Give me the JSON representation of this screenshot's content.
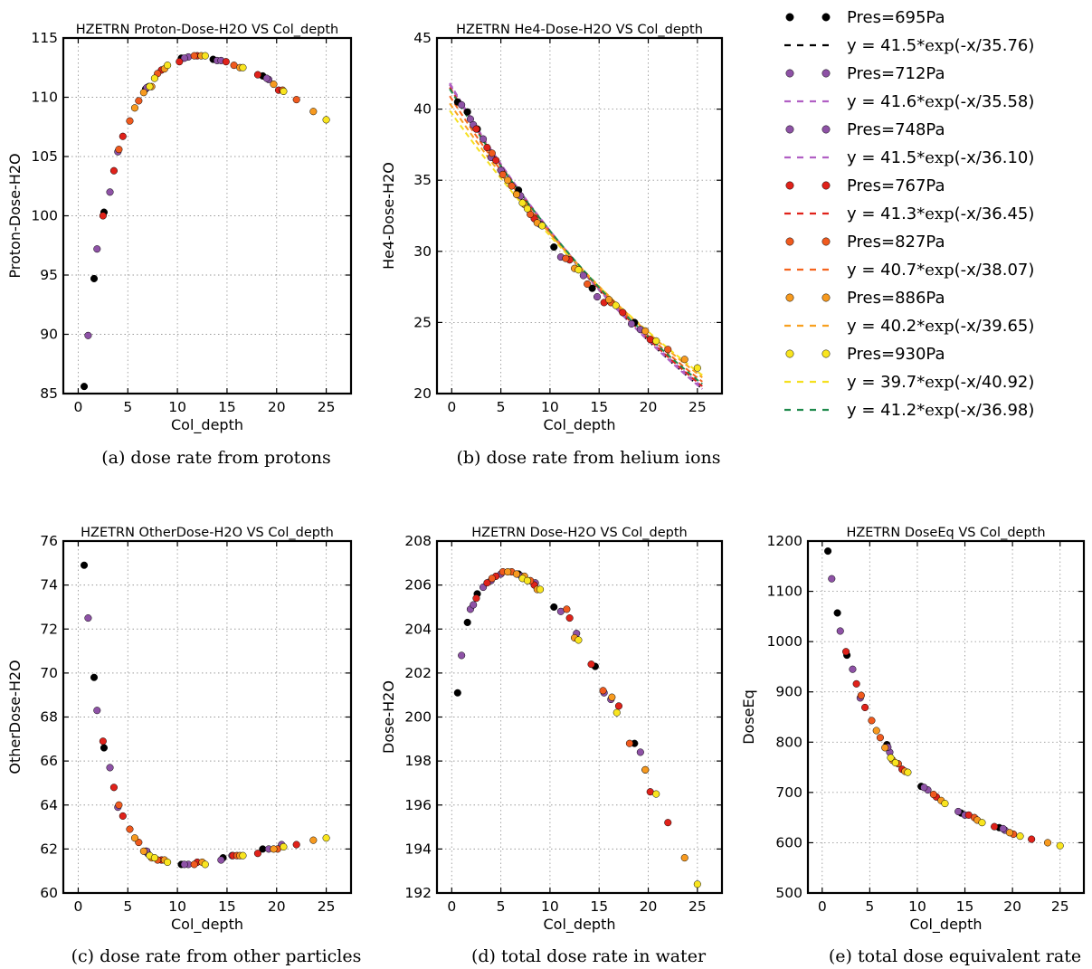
{
  "legend": {
    "entries": [
      {
        "kind": "marker",
        "label": "Pres=695Pa",
        "color": "#000000"
      },
      {
        "kind": "line",
        "pre": "y = 41.5*",
        "mid": "exp",
        "post": "(-x/35.76)",
        "color": "#000000"
      },
      {
        "kind": "marker",
        "label": "Pres=712Pa",
        "color": "#8e52a6"
      },
      {
        "kind": "line",
        "pre": "y = 41.6*",
        "mid": "exp",
        "post": "(-x/35.58)",
        "color": "#b15fc4"
      },
      {
        "kind": "marker",
        "label": "Pres=748Pa",
        "color": "#8e52a6"
      },
      {
        "kind": "line",
        "pre": "y = 41.5*",
        "mid": "exp",
        "post": "(-x/36.10)",
        "color": "#b15fc4"
      },
      {
        "kind": "marker",
        "label": "Pres=767Pa",
        "color": "#e0221a"
      },
      {
        "kind": "line",
        "pre": "y = 41.3*",
        "mid": "exp",
        "post": "(-x/36.45)",
        "color": "#e0221a"
      },
      {
        "kind": "marker",
        "label": "Pres=827Pa",
        "color": "#f05a1e"
      },
      {
        "kind": "line",
        "pre": "y = 40.7*",
        "mid": "exp",
        "post": "(-x/38.07)",
        "color": "#f5641e"
      },
      {
        "kind": "marker",
        "label": "Pres=886Pa",
        "color": "#f79a1f"
      },
      {
        "kind": "line",
        "pre": "y = 40.2*",
        "mid": "exp",
        "post": "(-x/39.65)",
        "color": "#f8a020"
      },
      {
        "kind": "marker",
        "label": "Pres=930Pa",
        "color": "#f9e51f"
      },
      {
        "kind": "line",
        "pre": "y = 39.7*",
        "mid": "exp",
        "post": "(-x/40.92)",
        "color": "#f5e020"
      },
      {
        "kind": "line",
        "pre": "y = 41.2*",
        "mid": "exp",
        "post": "(-x/36.98)",
        "color": "#1f8a4c"
      }
    ]
  },
  "chart_data": [
    {
      "type": "scatter",
      "title": "HZETRN Proton-Dose-H2O VS Col_depth",
      "xlabel": "Col_depth",
      "ylabel": "Proton-Dose-H2O",
      "caption": "(a) dose rate from protons",
      "xlim": [
        -1.5,
        27.5
      ],
      "ylim": [
        85,
        115
      ],
      "xticks": [
        0,
        5,
        10,
        15,
        20,
        25
      ],
      "yticks": [
        85,
        90,
        95,
        100,
        105,
        110,
        115
      ],
      "grid": true,
      "series": [
        {
          "name": "Pres=695Pa",
          "color": "#000000",
          "x": [
            0.6,
            1.6,
            2.6,
            6.8,
            10.4,
            13.6,
            18.6
          ],
          "y": [
            85.6,
            94.7,
            100.3,
            110.7,
            113.3,
            113.2,
            111.8
          ]
        },
        {
          "name": "Pres=712Pa",
          "color": "#8e52a6",
          "x": [
            1.0,
            1.9,
            3.2,
            4.0,
            7.1,
            11.1,
            14.0,
            19.2
          ],
          "y": [
            89.9,
            97.2,
            102.0,
            105.4,
            110.9,
            113.4,
            113.1,
            111.5
          ]
        },
        {
          "name": "Pres=748Pa",
          "color": "#8e52a6",
          "x": [
            6.9,
            10.7,
            14.4,
            19.0
          ],
          "y": [
            110.8,
            113.3,
            113.1,
            111.6
          ]
        },
        {
          "name": "Pres=767Pa",
          "color": "#e0221a",
          "x": [
            2.5,
            3.6,
            4.5,
            8.4,
            10.2,
            12.0,
            14.9,
            18.1,
            20.2
          ],
          "y": [
            100.0,
            103.8,
            106.7,
            112.3,
            113.0,
            113.5,
            113.0,
            111.9,
            110.6
          ]
        },
        {
          "name": "Pres=827Pa",
          "color": "#f05a1e",
          "x": [
            4.1,
            5.2,
            6.1,
            8.0,
            11.7,
            15.7,
            20.6,
            22.0
          ],
          "y": [
            105.6,
            108.0,
            109.7,
            112.0,
            113.5,
            112.7,
            110.6,
            109.8
          ]
        },
        {
          "name": "Pres=886Pa",
          "color": "#f79a1f",
          "x": [
            5.7,
            6.6,
            7.4,
            8.7,
            12.4,
            16.3,
            19.7,
            23.7
          ],
          "y": [
            109.1,
            110.4,
            110.9,
            112.4,
            113.5,
            112.5,
            111.1,
            108.8
          ]
        },
        {
          "name": "Pres=930Pa",
          "color": "#f9e51f",
          "x": [
            7.2,
            7.7,
            9.0,
            12.8,
            16.6,
            20.7,
            25.0
          ],
          "y": [
            110.9,
            111.6,
            112.7,
            113.5,
            112.5,
            110.5,
            108.1
          ]
        }
      ]
    },
    {
      "type": "scatter",
      "title": "HZETRN He4-Dose-H2O VS Col_depth",
      "xlabel": "Col_depth",
      "ylabel": "He4-Dose-H2O",
      "caption": "(b) dose rate from helium ions",
      "xlim": [
        -1.5,
        27.5
      ],
      "ylim": [
        20,
        45
      ],
      "xticks": [
        0,
        5,
        10,
        15,
        20,
        25
      ],
      "yticks": [
        20,
        25,
        30,
        35,
        40,
        45
      ],
      "grid": true,
      "fits": [
        {
          "color": "#000000",
          "a": 41.5,
          "b": 35.76
        },
        {
          "color": "#b15fc4",
          "a": 41.6,
          "b": 35.58
        },
        {
          "color": "#b15fc4",
          "a": 41.5,
          "b": 36.1
        },
        {
          "color": "#e0221a",
          "a": 41.3,
          "b": 36.45
        },
        {
          "color": "#f5641e",
          "a": 40.7,
          "b": 38.07
        },
        {
          "color": "#f8a020",
          "a": 40.2,
          "b": 39.65
        },
        {
          "color": "#f5e020",
          "a": 39.7,
          "b": 40.92
        },
        {
          "color": "#1f8a4c",
          "a": 41.2,
          "b": 36.98
        }
      ],
      "series": [
        {
          "name": "Pres=695Pa",
          "color": "#000000",
          "x": [
            0.6,
            1.6,
            2.6,
            6.8,
            10.4,
            14.3,
            18.6
          ],
          "y": [
            40.5,
            39.8,
            38.6,
            34.3,
            30.3,
            27.4,
            25.0
          ]
        },
        {
          "name": "Pres=712Pa",
          "color": "#8e52a6",
          "x": [
            1.0,
            1.9,
            3.2,
            4.0,
            7.0,
            11.1,
            14.8,
            19.2
          ],
          "y": [
            40.3,
            39.3,
            37.9,
            36.6,
            33.9,
            29.6,
            26.8,
            24.5
          ]
        },
        {
          "name": "Pres=748Pa",
          "color": "#8e52a6",
          "x": [
            2.2,
            5.0,
            9.0,
            13.4,
            18.3
          ],
          "y": [
            38.9,
            35.7,
            31.9,
            28.3,
            24.9
          ]
        },
        {
          "name": "Pres=767Pa",
          "color": "#e0221a",
          "x": [
            2.5,
            3.6,
            4.5,
            8.4,
            12.0,
            15.5,
            17.4,
            20.2
          ],
          "y": [
            38.6,
            37.3,
            36.4,
            32.3,
            29.4,
            26.4,
            25.7,
            23.8
          ]
        },
        {
          "name": "Pres=827Pa",
          "color": "#f05a1e",
          "x": [
            4.1,
            5.2,
            6.1,
            8.0,
            11.6,
            13.8,
            16.2,
            22.0
          ],
          "y": [
            36.9,
            35.4,
            34.6,
            32.6,
            29.5,
            27.7,
            26.4,
            23.1
          ]
        },
        {
          "name": "Pres=886Pa",
          "color": "#f79a1f",
          "x": [
            5.7,
            6.6,
            7.4,
            8.7,
            12.5,
            16.0,
            19.7,
            23.7
          ],
          "y": [
            35.0,
            34.0,
            33.3,
            32.0,
            28.8,
            26.6,
            24.4,
            22.4
          ]
        },
        {
          "name": "Pres=930Pa",
          "color": "#f9e51f",
          "x": [
            7.2,
            7.7,
            9.2,
            12.9,
            16.7,
            20.8,
            25.0
          ],
          "y": [
            33.4,
            33.0,
            31.8,
            28.7,
            26.2,
            23.7,
            21.8
          ]
        }
      ]
    },
    {
      "type": "scatter",
      "title": "HZETRN OtherDose-H2O VS Col_depth",
      "xlabel": "Col_depth",
      "ylabel": "OtherDose-H2O",
      "caption": "(c) dose rate from other particles",
      "xlim": [
        -1.5,
        27.5
      ],
      "ylim": [
        60,
        76
      ],
      "xticks": [
        0,
        5,
        10,
        15,
        20,
        25
      ],
      "yticks": [
        60,
        62,
        64,
        66,
        68,
        70,
        72,
        74,
        76
      ],
      "grid": true,
      "series": [
        {
          "name": "Pres=695Pa",
          "color": "#000000",
          "x": [
            0.6,
            1.6,
            2.6,
            6.8,
            10.4,
            14.6,
            18.6
          ],
          "y": [
            74.9,
            69.8,
            66.6,
            61.9,
            61.3,
            61.6,
            62.0
          ]
        },
        {
          "name": "Pres=712Pa",
          "color": "#8e52a6",
          "x": [
            1.0,
            1.9,
            3.2,
            4.0,
            7.0,
            11.1,
            15.5,
            19.2,
            20.5
          ],
          "y": [
            72.5,
            68.3,
            65.7,
            63.9,
            61.8,
            61.3,
            61.7,
            62.0,
            62.2
          ]
        },
        {
          "name": "Pres=748Pa",
          "color": "#8e52a6",
          "x": [
            6.9,
            10.7,
            14.4
          ],
          "y": [
            61.9,
            61.3,
            61.5
          ]
        },
        {
          "name": "Pres=767Pa",
          "color": "#e0221a",
          "x": [
            2.5,
            3.6,
            4.5,
            8.4,
            12.0,
            15.6,
            18.1,
            22.0
          ],
          "y": [
            66.9,
            64.8,
            63.5,
            61.5,
            61.4,
            61.7,
            61.8,
            62.2
          ]
        },
        {
          "name": "Pres=827Pa",
          "color": "#f05a1e",
          "x": [
            4.1,
            5.2,
            6.1,
            8.0,
            11.7,
            16.0,
            20.1
          ],
          "y": [
            64.0,
            62.9,
            62.3,
            61.5,
            61.3,
            61.7,
            62.0
          ]
        },
        {
          "name": "Pres=886Pa",
          "color": "#f79a1f",
          "x": [
            5.7,
            6.6,
            7.4,
            8.7,
            12.5,
            16.3,
            19.7,
            23.7
          ],
          "y": [
            62.5,
            61.9,
            61.6,
            61.5,
            61.4,
            61.7,
            62.0,
            62.4
          ]
        },
        {
          "name": "Pres=930Pa",
          "color": "#f9e51f",
          "x": [
            7.2,
            7.7,
            9.0,
            12.8,
            16.6,
            20.7,
            25.0
          ],
          "y": [
            61.7,
            61.6,
            61.4,
            61.3,
            61.7,
            62.1,
            62.5
          ]
        }
      ]
    },
    {
      "type": "scatter",
      "title": "HZETRN Dose-H2O VS Col_depth",
      "xlabel": "Col_depth",
      "ylabel": "Dose-H2O",
      "caption": "(d) total dose rate in water",
      "xlim": [
        -1.5,
        27.5
      ],
      "ylim": [
        192,
        208
      ],
      "xticks": [
        0,
        5,
        10,
        15,
        20,
        25
      ],
      "yticks": [
        192,
        194,
        196,
        198,
        200,
        202,
        204,
        206,
        208
      ],
      "grid": true,
      "series": [
        {
          "name": "Pres=695Pa",
          "color": "#000000",
          "x": [
            0.6,
            1.6,
            2.6,
            6.8,
            10.4,
            14.6,
            18.6
          ],
          "y": [
            201.1,
            204.3,
            205.6,
            206.5,
            205.0,
            202.3,
            198.8
          ]
        },
        {
          "name": "Pres=712Pa",
          "color": "#8e52a6",
          "x": [
            1.0,
            1.9,
            3.2,
            4.0,
            7.1,
            11.1,
            15.5,
            19.2
          ],
          "y": [
            202.8,
            204.9,
            205.9,
            206.2,
            206.4,
            204.8,
            201.1,
            198.4
          ]
        },
        {
          "name": "Pres=748Pa",
          "color": "#8e52a6",
          "x": [
            2.2,
            5.0,
            8.5,
            12.7,
            16.2
          ],
          "y": [
            205.1,
            206.5,
            206.1,
            203.8,
            200.8
          ]
        },
        {
          "name": "Pres=767Pa",
          "color": "#e0221a",
          "x": [
            2.5,
            3.6,
            4.5,
            8.4,
            12.0,
            14.2,
            17.0,
            20.2,
            22.0
          ],
          "y": [
            205.4,
            206.1,
            206.4,
            206.0,
            204.5,
            202.4,
            200.5,
            196.6,
            195.2
          ]
        },
        {
          "name": "Pres=827Pa",
          "color": "#f05a1e",
          "x": [
            4.1,
            5.2,
            6.1,
            8.0,
            11.7,
            15.4,
            18.1,
            19.7
          ],
          "y": [
            206.3,
            206.6,
            206.6,
            206.2,
            204.9,
            201.2,
            198.8,
            197.6
          ]
        },
        {
          "name": "Pres=886Pa",
          "color": "#f79a1f",
          "x": [
            5.7,
            6.6,
            7.4,
            8.7,
            12.5,
            16.3,
            19.7,
            23.7
          ],
          "y": [
            206.6,
            206.5,
            206.4,
            205.8,
            203.6,
            200.9,
            197.6,
            193.6
          ]
        },
        {
          "name": "Pres=930Pa",
          "color": "#f9e51f",
          "x": [
            7.2,
            7.7,
            9.0,
            12.9,
            16.8,
            20.8,
            25.0
          ],
          "y": [
            206.3,
            206.2,
            205.8,
            203.5,
            200.2,
            196.5,
            192.4
          ]
        }
      ]
    },
    {
      "type": "scatter",
      "title": "HZETRN DoseEq VS Col_depth",
      "xlabel": "Col_depth",
      "ylabel": "DoseEq",
      "caption": "(e) total dose equivalent rate",
      "xlim": [
        -1.5,
        27.5
      ],
      "ylim": [
        500,
        1200
      ],
      "xticks": [
        0,
        5,
        10,
        15,
        20,
        25
      ],
      "yticks": [
        500,
        600,
        700,
        800,
        900,
        1000,
        1100,
        1200
      ],
      "grid": true,
      "series": [
        {
          "name": "Pres=695Pa",
          "color": "#000000",
          "x": [
            0.6,
            1.6,
            2.6,
            6.8,
            10.4,
            14.6,
            18.6
          ],
          "y": [
            1180,
            1057,
            973,
            795,
            712,
            659,
            630
          ]
        },
        {
          "name": "Pres=712Pa",
          "color": "#8e52a6",
          "x": [
            1.0,
            1.9,
            3.2,
            4.0,
            7.1,
            11.1,
            15.0,
            19.2
          ],
          "y": [
            1125,
            1021,
            945,
            888,
            780,
            705,
            655,
            625
          ]
        },
        {
          "name": "Pres=748Pa",
          "color": "#8e52a6",
          "x": [
            6.9,
            10.7,
            14.3,
            19.0
          ],
          "y": [
            790,
            710,
            662,
            628
          ]
        },
        {
          "name": "Pres=767Pa",
          "color": "#e0221a",
          "x": [
            2.5,
            3.6,
            4.5,
            8.4,
            12.0,
            15.4,
            18.1,
            22.0
          ],
          "y": [
            980,
            916,
            869,
            746,
            691,
            655,
            632,
            607
          ]
        },
        {
          "name": "Pres=827Pa",
          "color": "#f05a1e",
          "x": [
            4.1,
            5.2,
            6.1,
            8.0,
            11.7,
            16.0,
            20.1
          ],
          "y": [
            893,
            843,
            809,
            757,
            696,
            650,
            617
          ]
        },
        {
          "name": "Pres=886Pa",
          "color": "#f79a1f",
          "x": [
            5.7,
            6.6,
            7.4,
            8.7,
            12.5,
            16.3,
            19.7,
            23.7
          ],
          "y": [
            823,
            789,
            764,
            742,
            684,
            645,
            620,
            600
          ]
        },
        {
          "name": "Pres=930Pa",
          "color": "#f9e51f",
          "x": [
            7.2,
            7.7,
            9.0,
            12.9,
            16.8,
            20.8,
            25.0
          ],
          "y": [
            769,
            759,
            740,
            678,
            640,
            613,
            594
          ]
        }
      ]
    }
  ]
}
